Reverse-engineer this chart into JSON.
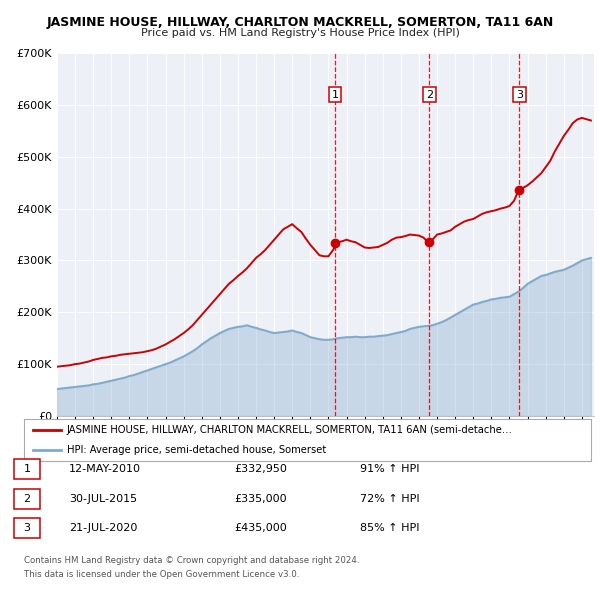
{
  "title": "JASMINE HOUSE, HILLWAY, CHARLTON MACKRELL, SOMERTON, TA11 6AN",
  "subtitle": "Price paid vs. HM Land Registry's House Price Index (HPI)",
  "background_color": "#ffffff",
  "plot_bg_color": "#eef0f8",
  "red_line_color": "#cc0000",
  "blue_line_color": "#7faacc",
  "ylim": [
    0,
    700000
  ],
  "yticks": [
    0,
    100000,
    200000,
    300000,
    400000,
    500000,
    600000,
    700000
  ],
  "ytick_labels": [
    "£0",
    "£100K",
    "£200K",
    "£300K",
    "£400K",
    "£500K",
    "£600K",
    "£700K"
  ],
  "xlim_start": 1995.0,
  "xlim_end": 2024.67,
  "sale_dates": [
    2010.36,
    2015.58,
    2020.55
  ],
  "sale_prices": [
    332950,
    335000,
    435000
  ],
  "sale_labels": [
    "1",
    "2",
    "3"
  ],
  "legend_red_label": "JASMINE HOUSE, HILLWAY, CHARLTON MACKRELL, SOMERTON, TA11 6AN (semi-detache…",
  "legend_blue_label": "HPI: Average price, semi-detached house, Somerset",
  "table_entries": [
    {
      "num": "1",
      "date": "12-MAY-2010",
      "price": "£332,950",
      "pct": "91% ↑ HPI"
    },
    {
      "num": "2",
      "date": "30-JUL-2015",
      "price": "£335,000",
      "pct": "72% ↑ HPI"
    },
    {
      "num": "3",
      "date": "21-JUL-2020",
      "price": "£435,000",
      "pct": "85% ↑ HPI"
    }
  ],
  "footer_line1": "Contains HM Land Registry data © Crown copyright and database right 2024.",
  "footer_line2": "This data is licensed under the Open Government Licence v3.0.",
  "red_x": [
    1995.0,
    1995.25,
    1995.5,
    1995.75,
    1996.0,
    1996.25,
    1996.5,
    1996.75,
    1997.0,
    1997.25,
    1997.5,
    1997.75,
    1998.0,
    1998.25,
    1998.5,
    1998.75,
    1999.0,
    1999.25,
    1999.5,
    1999.75,
    2000.0,
    2000.25,
    2000.5,
    2000.75,
    2001.0,
    2001.25,
    2001.5,
    2001.75,
    2002.0,
    2002.25,
    2002.5,
    2002.75,
    2003.0,
    2003.25,
    2003.5,
    2003.75,
    2004.0,
    2004.25,
    2004.5,
    2004.75,
    2005.0,
    2005.25,
    2005.5,
    2005.75,
    2006.0,
    2006.25,
    2006.5,
    2006.75,
    2007.0,
    2007.25,
    2007.5,
    2007.75,
    2008.0,
    2008.25,
    2008.5,
    2008.75,
    2009.0,
    2009.25,
    2009.5,
    2009.75,
    2010.0,
    2010.25,
    2010.5,
    2010.75,
    2011.0,
    2011.25,
    2011.5,
    2011.75,
    2012.0,
    2012.25,
    2012.5,
    2012.75,
    2013.0,
    2013.25,
    2013.5,
    2013.75,
    2014.0,
    2014.25,
    2014.5,
    2014.75,
    2015.0,
    2015.25,
    2015.5,
    2015.75,
    2016.0,
    2016.25,
    2016.5,
    2016.75,
    2017.0,
    2017.25,
    2017.5,
    2017.75,
    2018.0,
    2018.25,
    2018.5,
    2018.75,
    2019.0,
    2019.25,
    2019.5,
    2019.75,
    2020.0,
    2020.25,
    2020.5,
    2020.75,
    2021.0,
    2021.25,
    2021.5,
    2021.75,
    2022.0,
    2022.25,
    2022.5,
    2022.75,
    2023.0,
    2023.25,
    2023.5,
    2023.75,
    2024.0,
    2024.5
  ],
  "red_y": [
    95000,
    96000,
    97000,
    98000,
    100000,
    101000,
    103000,
    105000,
    108000,
    110000,
    112000,
    113000,
    115000,
    116000,
    118000,
    119000,
    120000,
    121000,
    122000,
    123000,
    125000,
    127000,
    130000,
    134000,
    138000,
    143000,
    148000,
    154000,
    160000,
    167000,
    175000,
    185000,
    195000,
    205000,
    215000,
    225000,
    235000,
    245000,
    255000,
    262000,
    270000,
    277000,
    285000,
    295000,
    305000,
    312000,
    320000,
    330000,
    340000,
    350000,
    360000,
    365000,
    370000,
    362000,
    355000,
    342000,
    330000,
    320000,
    310000,
    308000,
    308000,
    320000,
    335000,
    337000,
    340000,
    337000,
    335000,
    330000,
    325000,
    324000,
    325000,
    326000,
    330000,
    334000,
    340000,
    344000,
    345000,
    347000,
    350000,
    349000,
    348000,
    344000,
    335000,
    340000,
    350000,
    352000,
    355000,
    358000,
    365000,
    370000,
    375000,
    378000,
    380000,
    385000,
    390000,
    393000,
    395000,
    397000,
    400000,
    402000,
    405000,
    415000,
    435000,
    440000,
    445000,
    452000,
    460000,
    468000,
    480000,
    492000,
    510000,
    525000,
    540000,
    552000,
    565000,
    572000,
    575000,
    570000
  ],
  "blue_x": [
    1995.0,
    1995.25,
    1995.5,
    1995.75,
    1996.0,
    1996.25,
    1996.5,
    1996.75,
    1997.0,
    1997.25,
    1997.5,
    1997.75,
    1998.0,
    1998.25,
    1998.5,
    1998.75,
    1999.0,
    1999.25,
    1999.5,
    1999.75,
    2000.0,
    2000.25,
    2000.5,
    2000.75,
    2001.0,
    2001.25,
    2001.5,
    2001.75,
    2002.0,
    2002.25,
    2002.5,
    2002.75,
    2003.0,
    2003.25,
    2003.5,
    2003.75,
    2004.0,
    2004.25,
    2004.5,
    2004.75,
    2005.0,
    2005.25,
    2005.5,
    2005.75,
    2006.0,
    2006.25,
    2006.5,
    2006.75,
    2007.0,
    2007.25,
    2007.5,
    2007.75,
    2008.0,
    2008.25,
    2008.5,
    2008.75,
    2009.0,
    2009.25,
    2009.5,
    2009.75,
    2010.0,
    2010.25,
    2010.5,
    2010.75,
    2011.0,
    2011.25,
    2011.5,
    2011.75,
    2012.0,
    2012.25,
    2012.5,
    2012.75,
    2013.0,
    2013.25,
    2013.5,
    2013.75,
    2014.0,
    2014.25,
    2014.5,
    2014.75,
    2015.0,
    2015.25,
    2015.5,
    2015.75,
    2016.0,
    2016.25,
    2016.5,
    2016.75,
    2017.0,
    2017.25,
    2017.5,
    2017.75,
    2018.0,
    2018.25,
    2018.5,
    2018.75,
    2019.0,
    2019.25,
    2019.5,
    2019.75,
    2020.0,
    2020.25,
    2020.5,
    2020.75,
    2021.0,
    2021.25,
    2021.5,
    2021.75,
    2022.0,
    2022.25,
    2022.5,
    2022.75,
    2023.0,
    2023.25,
    2023.5,
    2023.75,
    2024.0,
    2024.5
  ],
  "blue_y": [
    52000,
    53000,
    54000,
    55000,
    56000,
    57000,
    58000,
    59000,
    61000,
    62000,
    64000,
    66000,
    68000,
    70000,
    72000,
    74000,
    77000,
    79000,
    82000,
    85000,
    88000,
    91000,
    94000,
    97000,
    100000,
    103000,
    107000,
    111000,
    115000,
    120000,
    125000,
    131000,
    138000,
    144000,
    150000,
    155000,
    160000,
    164000,
    168000,
    170000,
    172000,
    173000,
    175000,
    172000,
    170000,
    167000,
    165000,
    162000,
    160000,
    161000,
    162000,
    163000,
    165000,
    162000,
    160000,
    156000,
    152000,
    150000,
    148000,
    147000,
    147000,
    148000,
    150000,
    151000,
    152000,
    152000,
    153000,
    152000,
    152000,
    153000,
    153000,
    154000,
    155000,
    156000,
    158000,
    160000,
    162000,
    164000,
    168000,
    170000,
    172000,
    173000,
    174000,
    175000,
    178000,
    181000,
    185000,
    190000,
    195000,
    200000,
    205000,
    210000,
    215000,
    217000,
    220000,
    222000,
    225000,
    226000,
    228000,
    229000,
    230000,
    235000,
    240000,
    247000,
    255000,
    260000,
    265000,
    270000,
    272000,
    275000,
    278000,
    280000,
    282000,
    286000,
    290000,
    295000,
    300000,
    305000
  ]
}
